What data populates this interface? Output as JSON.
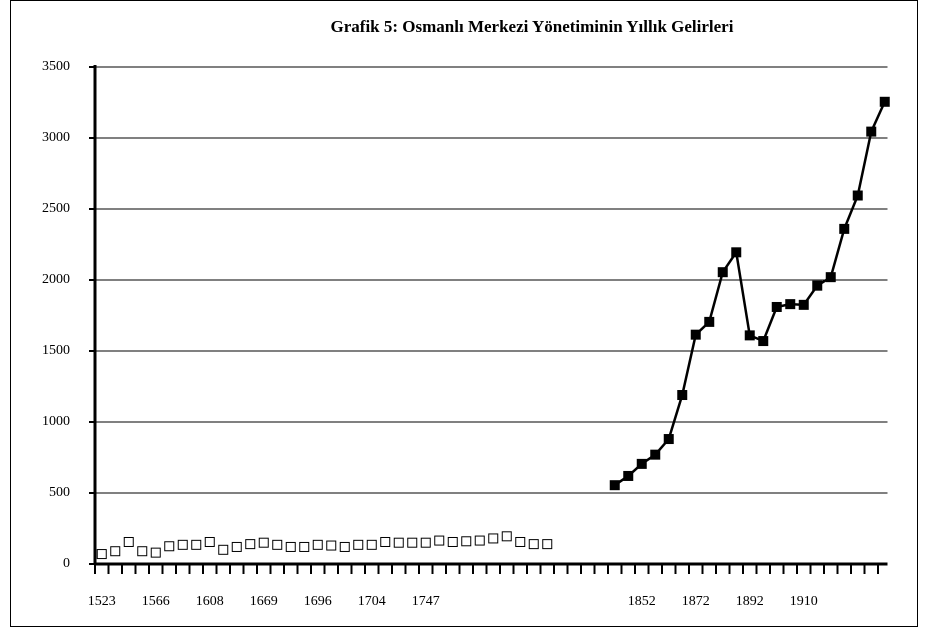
{
  "chart_data": {
    "type": "line",
    "title": "Grafik  5: Osmanlı Merkezi Yönetiminin Yıllık Gelirleri",
    "categories": [
      "1523",
      null,
      null,
      null,
      "1566",
      null,
      null,
      null,
      "1608",
      null,
      null,
      null,
      "1669",
      null,
      null,
      null,
      "1696",
      null,
      null,
      null,
      "1704",
      null,
      null,
      null,
      "1747",
      null,
      null,
      null,
      null,
      null,
      null,
      null,
      null,
      null,
      null,
      null,
      null,
      null,
      null,
      null,
      "1852",
      null,
      null,
      null,
      "1872",
      null,
      null,
      null,
      "1892",
      null,
      null,
      null,
      "1910",
      null,
      null,
      null,
      null,
      null,
      null
    ],
    "series": [
      {
        "color": "#000000",
        "marker_fill": "#ffffff",
        "line": false,
        "values": [
          70,
          90,
          155,
          90,
          80,
          125,
          135,
          135,
          155,
          100,
          120,
          140,
          150,
          135,
          120,
          120,
          135,
          130,
          120,
          135,
          135,
          155,
          150,
          150,
          150,
          165,
          155,
          160,
          165,
          180,
          195,
          155,
          140,
          140,
          null,
          null,
          null,
          null,
          null,
          null,
          null,
          null,
          null,
          null,
          null,
          null,
          null,
          null,
          null,
          null,
          null,
          null,
          null,
          null,
          null,
          null,
          null,
          null,
          null
        ]
      },
      {
        "color": "#000000",
        "marker_fill": "#000000",
        "line": true,
        "values": [
          null,
          null,
          null,
          null,
          null,
          null,
          null,
          null,
          null,
          null,
          null,
          null,
          null,
          null,
          null,
          null,
          null,
          null,
          null,
          null,
          null,
          null,
          null,
          null,
          null,
          null,
          null,
          null,
          null,
          null,
          null,
          null,
          null,
          null,
          null,
          null,
          null,
          null,
          555,
          620,
          705,
          770,
          880,
          1190,
          1615,
          1705,
          2055,
          2195,
          1610,
          1570,
          1810,
          1830,
          1825,
          1960,
          2020,
          2360,
          2595,
          3045,
          3255
        ]
      }
    ],
    "ylim": [
      0,
      3500
    ],
    "yticks": [
      0,
      500,
      1000,
      1500,
      2000,
      2500,
      3000,
      3500
    ],
    "grid": true
  }
}
